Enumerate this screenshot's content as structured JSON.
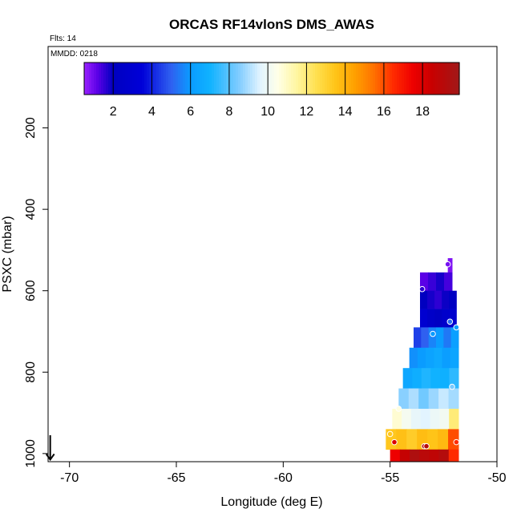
{
  "chart_data": {
    "type": "heatmap",
    "title": "ORCAS RF14vlonS DMS_AWAS",
    "flights_label": "Flts: 14",
    "date_label": "MMDD: 0218",
    "xlabel": "Longitude (deg E)",
    "ylabel": "PSXC (mbar)",
    "xlim": [
      -71,
      -50
    ],
    "ylim": [
      1020,
      0
    ],
    "x_ticks": [
      -70,
      -65,
      -60,
      -55,
      -50
    ],
    "x_tick_labels": [
      "-70",
      "-65",
      "-60",
      "-55",
      "-50"
    ],
    "y_ticks": [
      200,
      400,
      600,
      800,
      1000
    ],
    "y_tick_labels": [
      "200",
      "400",
      "600",
      "800",
      "1000"
    ],
    "colorbar": {
      "min": 0.5,
      "max": 19.9,
      "ticks": [
        2,
        4,
        6,
        8,
        10,
        12,
        14,
        16,
        18
      ],
      "tick_labels": [
        "2",
        "4",
        "6",
        "8",
        "10",
        "12",
        "14",
        "16",
        "18"
      ],
      "color_stops": [
        [
          0.5,
          "#9a22ff"
        ],
        [
          1.2,
          "#5a00e6"
        ],
        [
          2,
          "#0000c0"
        ],
        [
          3.5,
          "#0000d8"
        ],
        [
          5,
          "#2f60f0"
        ],
        [
          6,
          "#0a9cff"
        ],
        [
          7,
          "#10b2ff"
        ],
        [
          8.5,
          "#80ccff"
        ],
        [
          9.6,
          "#e2f4ff"
        ],
        [
          10.5,
          "#ffffe8"
        ],
        [
          11.5,
          "#fff6a0"
        ],
        [
          12.5,
          "#ffe050"
        ],
        [
          13.5,
          "#ffc418"
        ],
        [
          14.5,
          "#ffa000"
        ],
        [
          15.5,
          "#ff7000"
        ],
        [
          16.5,
          "#ff2a00"
        ],
        [
          17.5,
          "#ee0000"
        ],
        [
          18.5,
          "#c80000"
        ],
        [
          19.9,
          "#a01818"
        ]
      ]
    },
    "pressure_bins": [
      {
        "p_top": 520,
        "p_bottom": 555,
        "lon_min": -52.3,
        "lon_max": -52.1,
        "values": [
          0.8
        ]
      },
      {
        "p_top": 555,
        "p_bottom": 600,
        "lon_min": -53.6,
        "lon_max": -52.1,
        "values": [
          1.2,
          1.5,
          1.8,
          1.4
        ]
      },
      {
        "p_top": 600,
        "p_bottom": 645,
        "lon_min": -53.6,
        "lon_max": -51.9,
        "values": [
          2.0,
          1.8,
          1.6,
          1.9,
          2.1
        ]
      },
      {
        "p_top": 645,
        "p_bottom": 690,
        "lon_min": -53.6,
        "lon_max": -51.9,
        "values": [
          3.0,
          2.5,
          2.2,
          2.7,
          2.9
        ]
      },
      {
        "p_top": 690,
        "p_bottom": 740,
        "lon_min": -53.9,
        "lon_max": -51.8,
        "values": [
          4.5,
          5.0,
          5.6,
          6.0,
          5.4,
          6.2
        ]
      },
      {
        "p_top": 740,
        "p_bottom": 790,
        "lon_min": -54.1,
        "lon_max": -51.8,
        "values": [
          5.8,
          6.0,
          6.3,
          6.6,
          6.1,
          6.4
        ]
      },
      {
        "p_top": 790,
        "p_bottom": 840,
        "lon_min": -54.4,
        "lon_max": -51.8,
        "values": [
          6.5,
          6.8,
          7.2,
          7.0,
          6.9,
          7.4
        ]
      },
      {
        "p_top": 840,
        "p_bottom": 890,
        "lon_min": -54.6,
        "lon_max": -51.8,
        "values": [
          8.6,
          9.0,
          8.3,
          8.8,
          9.3,
          8.9
        ]
      },
      {
        "p_top": 890,
        "p_bottom": 940,
        "lon_min": -54.9,
        "lon_max": -51.8,
        "values": [
          10.8,
          10.2,
          9.8,
          9.6,
          9.9,
          10.1,
          12.0
        ]
      },
      {
        "p_top": 940,
        "p_bottom": 990,
        "lon_min": -55.2,
        "lon_max": -51.8,
        "values": [
          13.4,
          13.6,
          13.2,
          13.7,
          13.5,
          13.8,
          16.0
        ]
      },
      {
        "p_top": 990,
        "p_bottom": 1020,
        "lon_min": -55.0,
        "lon_max": -51.8,
        "values": [
          17.5,
          18.6,
          19.4,
          19.0,
          18.8,
          19.2,
          16.5
        ]
      }
    ],
    "observations": [
      {
        "lon": -52.3,
        "p": 535,
        "value": 0.9
      },
      {
        "lon": -53.5,
        "p": 596,
        "value": 1.6
      },
      {
        "lon": -53.0,
        "p": 706,
        "value": 6.0
      },
      {
        "lon": -52.2,
        "p": 676,
        "value": 5.2
      },
      {
        "lon": -51.9,
        "p": 690,
        "value": 6.1
      },
      {
        "lon": -52.1,
        "p": 836,
        "value": 8.4
      },
      {
        "lon": -54.6,
        "p": 890,
        "value": 10.6
      },
      {
        "lon": -55.0,
        "p": 952,
        "value": 13.4
      },
      {
        "lon": -54.8,
        "p": 972,
        "value": 18.0
      },
      {
        "lon": -53.4,
        "p": 982,
        "value": 19.3
      },
      {
        "lon": -53.3,
        "p": 982,
        "value": 19.1
      },
      {
        "lon": -51.9,
        "p": 972,
        "value": 16.5
      }
    ],
    "marker": {
      "type": "arrow-down",
      "lon": -70.9,
      "p_from": 955,
      "p_to": 1015
    }
  }
}
